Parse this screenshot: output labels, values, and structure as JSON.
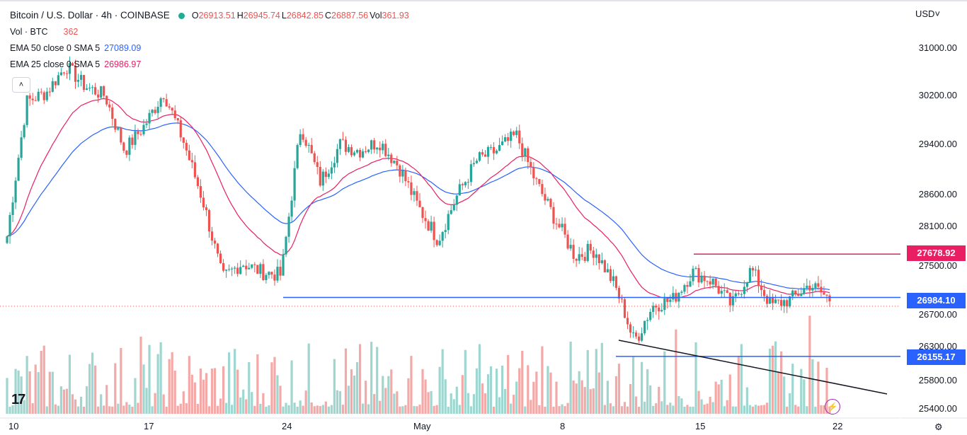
{
  "header": {
    "title": "Bitcoin / U.S. Dollar · 4h · COINBASE",
    "ohlc": {
      "o_label": "O",
      "o": "26913.51",
      "h_label": "H",
      "h": "26945.74",
      "l_label": "L",
      "l": "26842.85",
      "c_label": "C",
      "c": "26887.56",
      "vol_label": "Vol",
      "vol": "361.93"
    },
    "volume_label": "Vol · BTC",
    "volume_value": "362",
    "ema50_label": "EMA 50 close 0 SMA 5",
    "ema50_value": "27089.09",
    "ema25_label": "EMA 25 close 0 SMA 5",
    "ema25_value": "26986.97",
    "collapse_glyph": "˄",
    "currency": "USD˅"
  },
  "price_axis": {
    "ticks": [
      "31000.00",
      "30200.00",
      "29400.00",
      "28600.00",
      "28100.00",
      "27500.00",
      "26700.00",
      "26300.00",
      "25800.00",
      "25400.00"
    ],
    "tags": [
      {
        "value": "27678.92",
        "color": "#e91e63"
      },
      {
        "value": "26984.10",
        "color": "#2962ff"
      },
      {
        "value": "26155.17",
        "color": "#2962ff"
      }
    ]
  },
  "time_axis": {
    "ticks": [
      "10",
      "17",
      "24",
      "May",
      "8",
      "15",
      "22"
    ]
  },
  "logo": "17",
  "colors": {
    "up": "#26a69a",
    "down": "#ef5350",
    "ema50": "#2962ff",
    "ema25": "#e91e63",
    "support": "#2962ff",
    "resistance": "#e91e63",
    "trendline": "#131722"
  },
  "chart_data": {
    "type": "candlestick",
    "symbol": "BTCUSD",
    "interval": "4h",
    "x": [
      "10",
      "17",
      "24",
      "May",
      "8",
      "15",
      "22"
    ],
    "ylim": [
      25400,
      31000
    ],
    "close_series": [
      {
        "date": "10",
        "price": 27950
      },
      {
        "date": "11",
        "price": 30100
      },
      {
        "date": "12",
        "price": 30250
      },
      {
        "date": "13",
        "price": 30700
      },
      {
        "date": "14",
        "price": 30350
      },
      {
        "date": "15",
        "price": 30200
      },
      {
        "date": "16",
        "price": 29300
      },
      {
        "date": "17",
        "price": 29700
      },
      {
        "date": "18",
        "price": 30250
      },
      {
        "date": "19",
        "price": 29450
      },
      {
        "date": "20",
        "price": 28500
      },
      {
        "date": "21",
        "price": 27300
      },
      {
        "date": "22",
        "price": 27550
      },
      {
        "date": "23",
        "price": 27400
      },
      {
        "date": "24",
        "price": 27350
      },
      {
        "date": "25",
        "price": 29700
      },
      {
        "date": "26",
        "price": 28800
      },
      {
        "date": "27",
        "price": 29400
      },
      {
        "date": "28",
        "price": 29300
      },
      {
        "date": "29",
        "price": 29450
      },
      {
        "date": "30",
        "price": 29050
      },
      {
        "date": "May",
        "price": 28400
      },
      {
        "date": "2",
        "price": 27900
      },
      {
        "date": "3",
        "price": 28600
      },
      {
        "date": "4",
        "price": 29150
      },
      {
        "date": "5",
        "price": 29300
      },
      {
        "date": "6",
        "price": 29550
      },
      {
        "date": "7",
        "price": 28800
      },
      {
        "date": "8",
        "price": 28200
      },
      {
        "date": "9",
        "price": 27650
      },
      {
        "date": "10",
        "price": 27750
      },
      {
        "date": "11",
        "price": 27200
      },
      {
        "date": "12",
        "price": 26350
      },
      {
        "date": "13",
        "price": 26850
      },
      {
        "date": "14",
        "price": 26950
      },
      {
        "date": "15",
        "price": 27400
      },
      {
        "date": "16",
        "price": 27250
      },
      {
        "date": "17",
        "price": 26850
      },
      {
        "date": "18",
        "price": 27450
      },
      {
        "date": "19",
        "price": 26850
      },
      {
        "date": "20",
        "price": 26950
      },
      {
        "date": "21",
        "price": 27200
      },
      {
        "date": "22",
        "price": 26950
      }
    ],
    "levels": [
      {
        "name": "resistance",
        "price": 27678.92
      },
      {
        "name": "support",
        "price": 26984.1
      },
      {
        "name": "support",
        "price": 26155.17
      }
    ]
  }
}
